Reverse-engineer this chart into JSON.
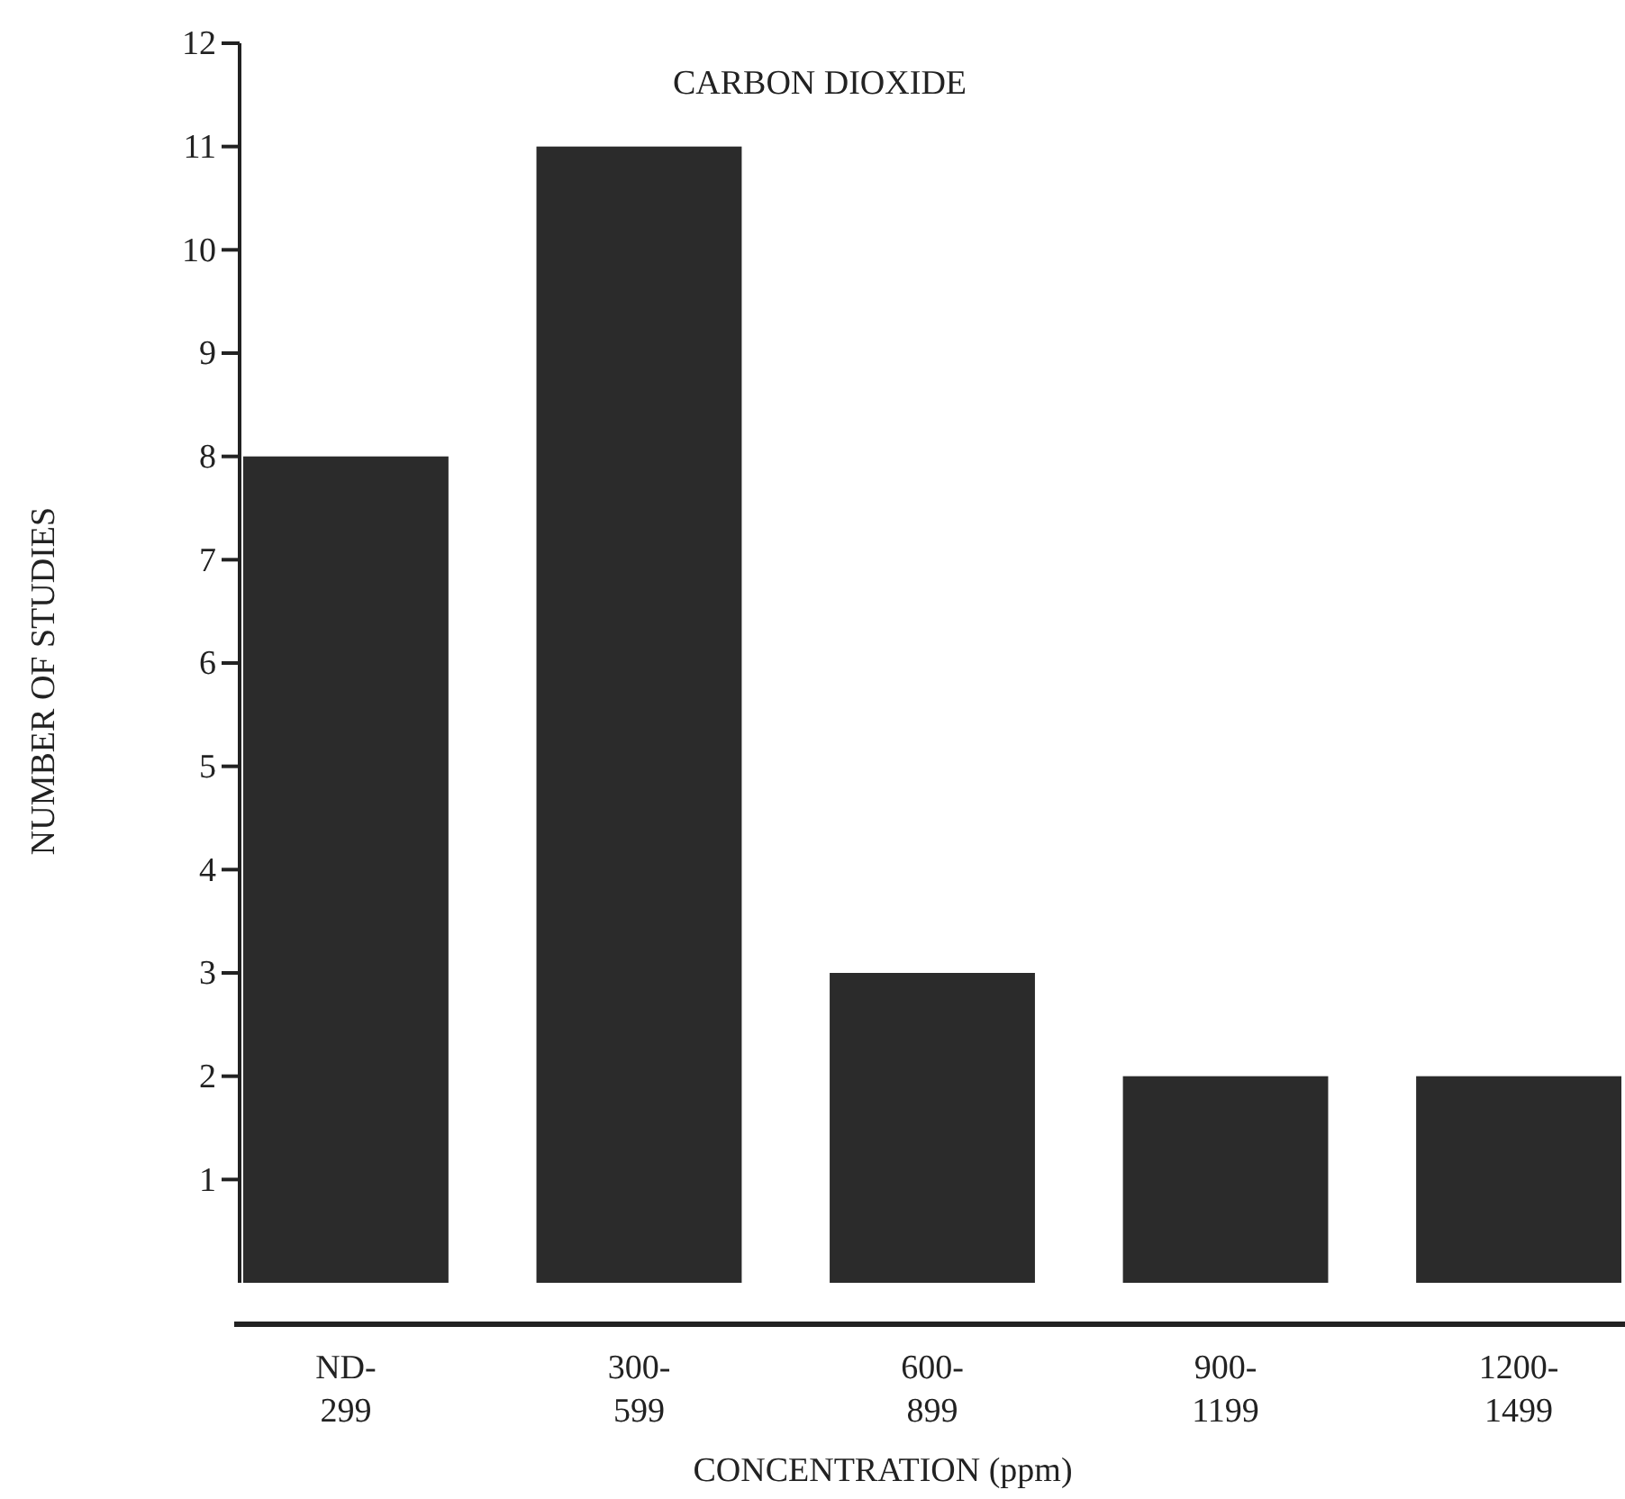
{
  "chart_data": {
    "type": "bar",
    "title": "CARBON DIOXIDE",
    "xlabel": "CONCENTRATION (ppm)",
    "ylabel": "NUMBER OF STUDIES",
    "categories": [
      "ND-299",
      "300-599",
      "600-899",
      "900-1199",
      "1200-1499"
    ],
    "values": [
      8,
      11,
      3,
      2,
      2
    ],
    "color": "#2b2b2b",
    "ylim": [
      0,
      12
    ],
    "yticks": [
      1,
      2,
      3,
      4,
      5,
      6,
      7,
      8,
      9,
      10,
      11,
      12
    ],
    "grid": false
  }
}
